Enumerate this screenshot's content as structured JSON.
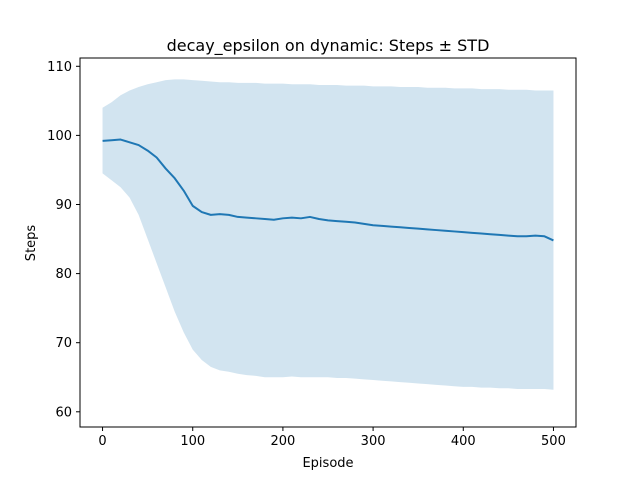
{
  "chart_data": {
    "type": "line",
    "title": "decay_epsilon on dynamic: Steps ± STD",
    "xlabel": "Episode",
    "ylabel": "Steps",
    "xlim": [
      -25,
      525
    ],
    "ylim": [
      57.8,
      111.2
    ],
    "x_ticks": [
      0,
      100,
      200,
      300,
      400,
      500
    ],
    "y_ticks": [
      60,
      70,
      80,
      90,
      100,
      110
    ],
    "grid": false,
    "legend": "none",
    "colors": {
      "line": "#1f77b4",
      "band": "#1f77b4",
      "band_opacity": 0.2
    },
    "series": [
      {
        "x": [
          0,
          10,
          20,
          30,
          40,
          50,
          60,
          70,
          80,
          90,
          100,
          110,
          120,
          130,
          140,
          150,
          160,
          170,
          180,
          190,
          200,
          210,
          220,
          230,
          240,
          250,
          260,
          270,
          280,
          290,
          300,
          310,
          320,
          330,
          340,
          350,
          360,
          370,
          380,
          390,
          400,
          410,
          420,
          430,
          440,
          450,
          460,
          470,
          480,
          490,
          500
        ],
        "mean": [
          99.2,
          99.3,
          99.4,
          99.0,
          98.6,
          97.8,
          96.8,
          95.2,
          93.8,
          92.0,
          89.8,
          88.9,
          88.5,
          88.6,
          88.5,
          88.2,
          88.1,
          88.0,
          87.9,
          87.8,
          88.0,
          88.1,
          88.0,
          88.2,
          87.9,
          87.7,
          87.6,
          87.5,
          87.4,
          87.2,
          87.0,
          86.9,
          86.8,
          86.7,
          86.6,
          86.5,
          86.4,
          86.3,
          86.2,
          86.1,
          86.0,
          85.9,
          85.8,
          85.7,
          85.6,
          85.5,
          85.4,
          85.4,
          85.5,
          85.4,
          84.8
        ],
        "upper": [
          104.0,
          104.8,
          105.8,
          106.5,
          107.0,
          107.4,
          107.7,
          108.0,
          108.1,
          108.1,
          108.0,
          107.9,
          107.8,
          107.7,
          107.7,
          107.6,
          107.6,
          107.6,
          107.5,
          107.5,
          107.5,
          107.4,
          107.4,
          107.4,
          107.3,
          107.3,
          107.3,
          107.2,
          107.2,
          107.2,
          107.1,
          107.1,
          107.1,
          107.0,
          107.0,
          107.0,
          106.9,
          106.9,
          106.9,
          106.8,
          106.8,
          106.8,
          106.7,
          106.7,
          106.7,
          106.6,
          106.6,
          106.6,
          106.5,
          106.5,
          106.5
        ],
        "lower": [
          94.5,
          93.5,
          92.5,
          91.0,
          88.5,
          85.0,
          81.5,
          78.0,
          74.5,
          71.5,
          69.0,
          67.5,
          66.5,
          66.0,
          65.8,
          65.5,
          65.3,
          65.2,
          65.0,
          65.0,
          65.0,
          65.1,
          65.0,
          65.0,
          65.0,
          65.0,
          64.9,
          64.9,
          64.8,
          64.7,
          64.6,
          64.5,
          64.4,
          64.3,
          64.2,
          64.1,
          64.0,
          63.9,
          63.8,
          63.7,
          63.6,
          63.6,
          63.5,
          63.5,
          63.4,
          63.4,
          63.3,
          63.3,
          63.3,
          63.3,
          63.2
        ]
      }
    ]
  }
}
